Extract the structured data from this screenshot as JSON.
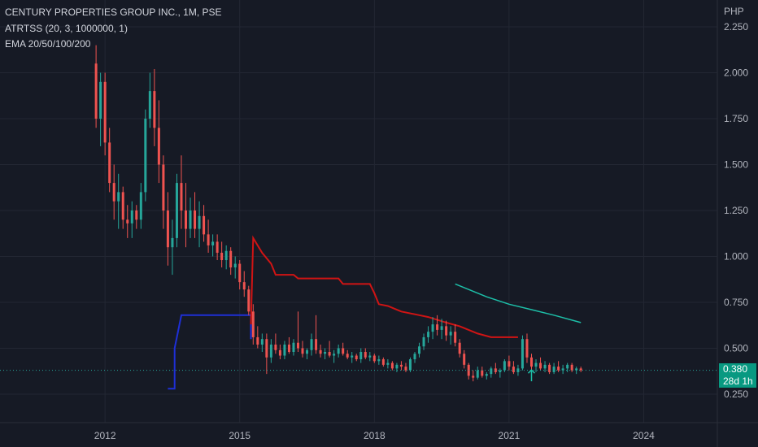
{
  "header": {
    "title": "CENTURY PROPERTIES GROUP INC., 1M, PSE",
    "indicator_atr": "ATRTSS (20, 3, 1000000, 1)",
    "indicator_ema": "EMA 20/50/100/200"
  },
  "price_badge": {
    "price": "0.380",
    "countdown": "28d 1h"
  },
  "colors": {
    "background": "#161a25",
    "up": "#26a69a",
    "down": "#ef5350",
    "stop_line": "#d01414",
    "blue_line": "#1e2fd6",
    "ema": "#1dbfa8",
    "grid": "#232733",
    "dotted_price": "#26a69a"
  },
  "chart_data": {
    "type": "candlestick",
    "ylabel": "PHP",
    "ylim": [
      0.125,
      2.375
    ],
    "yticks": [
      "2.250",
      "2.000",
      "1.750",
      "1.500",
      "1.250",
      "1.000",
      "0.750",
      "0.500",
      "0.250"
    ],
    "xticks": [
      "2012",
      "2015",
      "2018",
      "2021",
      "2024"
    ],
    "xlim": [
      2009.66,
      2025.64
    ],
    "last_price": 0.38,
    "arrow_up": {
      "x": 2021.5,
      "y": 0.32
    },
    "candles": [
      [
        2011.8,
        2.05,
        2.15,
        1.7,
        1.75
      ],
      [
        2011.9,
        1.75,
        2.0,
        1.6,
        1.95
      ],
      [
        2012.0,
        1.95,
        2.0,
        1.55,
        1.62
      ],
      [
        2012.1,
        1.62,
        1.7,
        1.35,
        1.4
      ],
      [
        2012.2,
        1.4,
        1.5,
        1.2,
        1.3
      ],
      [
        2012.3,
        1.3,
        1.45,
        1.15,
        1.35
      ],
      [
        2012.4,
        1.35,
        1.38,
        1.15,
        1.2
      ],
      [
        2012.5,
        1.2,
        1.28,
        1.1,
        1.18
      ],
      [
        2012.6,
        1.18,
        1.3,
        1.1,
        1.25
      ],
      [
        2012.7,
        1.25,
        1.28,
        1.15,
        1.2
      ],
      [
        2012.8,
        1.2,
        1.4,
        1.15,
        1.35
      ],
      [
        2012.9,
        1.35,
        1.8,
        1.3,
        1.75
      ],
      [
        2013.0,
        1.75,
        2.0,
        1.7,
        1.9
      ],
      [
        2013.1,
        1.9,
        2.02,
        1.6,
        1.7
      ],
      [
        2013.2,
        1.7,
        1.85,
        1.4,
        1.5
      ],
      [
        2013.3,
        1.5,
        1.55,
        1.15,
        1.25
      ],
      [
        2013.4,
        1.25,
        1.35,
        0.95,
        1.05
      ],
      [
        2013.5,
        1.05,
        1.2,
        0.9,
        1.1
      ],
      [
        2013.6,
        1.1,
        1.45,
        1.05,
        1.4
      ],
      [
        2013.7,
        1.4,
        1.55,
        1.15,
        1.25
      ],
      [
        2013.8,
        1.25,
        1.4,
        1.05,
        1.15
      ],
      [
        2013.9,
        1.15,
        1.32,
        1.1,
        1.25
      ],
      [
        2014.0,
        1.25,
        1.35,
        1.1,
        1.15
      ],
      [
        2014.1,
        1.15,
        1.3,
        1.05,
        1.22
      ],
      [
        2014.2,
        1.22,
        1.28,
        1.08,
        1.12
      ],
      [
        2014.3,
        1.12,
        1.2,
        1.02,
        1.06
      ],
      [
        2014.4,
        1.06,
        1.12,
        1.0,
        1.08
      ],
      [
        2014.5,
        1.08,
        1.12,
        0.98,
        1.02
      ],
      [
        2014.6,
        1.02,
        1.08,
        0.94,
        0.98
      ],
      [
        2014.7,
        0.98,
        1.06,
        0.93,
        1.03
      ],
      [
        2014.8,
        1.03,
        1.05,
        0.9,
        0.94
      ],
      [
        2014.9,
        0.94,
        1.0,
        0.88,
        0.96
      ],
      [
        2015.0,
        0.96,
        0.98,
        0.82,
        0.86
      ],
      [
        2015.1,
        0.86,
        0.92,
        0.78,
        0.82
      ],
      [
        2015.2,
        0.82,
        0.84,
        0.68,
        0.7
      ],
      [
        2015.3,
        0.7,
        0.74,
        0.52,
        0.56
      ],
      [
        2015.4,
        0.56,
        0.62,
        0.5,
        0.52
      ],
      [
        2015.5,
        0.52,
        0.58,
        0.48,
        0.55
      ],
      [
        2015.6,
        0.55,
        0.58,
        0.36,
        0.45
      ],
      [
        2015.7,
        0.45,
        0.55,
        0.42,
        0.52
      ],
      [
        2015.8,
        0.52,
        0.58,
        0.47,
        0.49
      ],
      [
        2015.9,
        0.49,
        0.52,
        0.44,
        0.46
      ],
      [
        2016.0,
        0.46,
        0.54,
        0.44,
        0.52
      ],
      [
        2016.1,
        0.52,
        0.56,
        0.47,
        0.48
      ],
      [
        2016.2,
        0.48,
        0.55,
        0.46,
        0.53
      ],
      [
        2016.3,
        0.53,
        0.7,
        0.48,
        0.5
      ],
      [
        2016.4,
        0.5,
        0.54,
        0.45,
        0.47
      ],
      [
        2016.5,
        0.47,
        0.5,
        0.44,
        0.49
      ],
      [
        2016.6,
        0.49,
        0.58,
        0.46,
        0.55
      ],
      [
        2016.7,
        0.55,
        0.68,
        0.47,
        0.49
      ],
      [
        2016.8,
        0.49,
        0.52,
        0.45,
        0.47
      ],
      [
        2016.9,
        0.47,
        0.5,
        0.44,
        0.48
      ],
      [
        2017.0,
        0.48,
        0.54,
        0.45,
        0.46
      ],
      [
        2017.1,
        0.46,
        0.49,
        0.42,
        0.47
      ],
      [
        2017.2,
        0.47,
        0.52,
        0.45,
        0.5
      ],
      [
        2017.3,
        0.5,
        0.53,
        0.46,
        0.47
      ],
      [
        2017.4,
        0.47,
        0.49,
        0.44,
        0.45
      ],
      [
        2017.5,
        0.45,
        0.48,
        0.42,
        0.46
      ],
      [
        2017.6,
        0.46,
        0.47,
        0.43,
        0.44
      ],
      [
        2017.7,
        0.44,
        0.5,
        0.42,
        0.48
      ],
      [
        2017.8,
        0.48,
        0.5,
        0.44,
        0.45
      ],
      [
        2017.9,
        0.45,
        0.48,
        0.43,
        0.46
      ],
      [
        2018.0,
        0.46,
        0.47,
        0.42,
        0.43
      ],
      [
        2018.1,
        0.43,
        0.46,
        0.41,
        0.44
      ],
      [
        2018.2,
        0.44,
        0.45,
        0.4,
        0.41
      ],
      [
        2018.3,
        0.41,
        0.44,
        0.39,
        0.42
      ],
      [
        2018.4,
        0.42,
        0.43,
        0.38,
        0.39
      ],
      [
        2018.5,
        0.39,
        0.42,
        0.37,
        0.41
      ],
      [
        2018.6,
        0.41,
        0.43,
        0.38,
        0.4
      ],
      [
        2018.7,
        0.4,
        0.42,
        0.37,
        0.38
      ],
      [
        2018.8,
        0.38,
        0.45,
        0.37,
        0.44
      ],
      [
        2018.9,
        0.44,
        0.48,
        0.42,
        0.47
      ],
      [
        2019.0,
        0.47,
        0.53,
        0.45,
        0.51
      ],
      [
        2019.1,
        0.51,
        0.58,
        0.49,
        0.56
      ],
      [
        2019.2,
        0.56,
        0.62,
        0.53,
        0.59
      ],
      [
        2019.3,
        0.59,
        0.67,
        0.55,
        0.63
      ],
      [
        2019.4,
        0.63,
        0.68,
        0.57,
        0.6
      ],
      [
        2019.5,
        0.6,
        0.66,
        0.55,
        0.62
      ],
      [
        2019.6,
        0.62,
        0.65,
        0.54,
        0.57
      ],
      [
        2019.7,
        0.57,
        0.62,
        0.52,
        0.59
      ],
      [
        2019.8,
        0.59,
        0.63,
        0.51,
        0.53
      ],
      [
        2019.9,
        0.53,
        0.55,
        0.45,
        0.47
      ],
      [
        2020.0,
        0.47,
        0.49,
        0.39,
        0.41
      ],
      [
        2020.1,
        0.41,
        0.42,
        0.33,
        0.35
      ],
      [
        2020.2,
        0.35,
        0.38,
        0.32,
        0.34
      ],
      [
        2020.3,
        0.34,
        0.4,
        0.33,
        0.38
      ],
      [
        2020.4,
        0.38,
        0.4,
        0.34,
        0.35
      ],
      [
        2020.5,
        0.35,
        0.37,
        0.33,
        0.36
      ],
      [
        2020.6,
        0.36,
        0.4,
        0.34,
        0.39
      ],
      [
        2020.7,
        0.39,
        0.42,
        0.36,
        0.37
      ],
      [
        2020.8,
        0.37,
        0.39,
        0.34,
        0.38
      ],
      [
        2020.9,
        0.38,
        0.44,
        0.37,
        0.43
      ],
      [
        2021.0,
        0.43,
        0.46,
        0.38,
        0.4
      ],
      [
        2021.1,
        0.4,
        0.43,
        0.36,
        0.37
      ],
      [
        2021.2,
        0.37,
        0.41,
        0.35,
        0.39
      ],
      [
        2021.3,
        0.39,
        0.57,
        0.38,
        0.55
      ],
      [
        2021.4,
        0.55,
        0.58,
        0.42,
        0.45
      ],
      [
        2021.5,
        0.45,
        0.47,
        0.38,
        0.4
      ],
      [
        2021.6,
        0.4,
        0.44,
        0.37,
        0.42
      ],
      [
        2021.7,
        0.42,
        0.45,
        0.38,
        0.39
      ],
      [
        2021.8,
        0.39,
        0.43,
        0.37,
        0.41
      ],
      [
        2021.9,
        0.41,
        0.42,
        0.36,
        0.37
      ],
      [
        2022.0,
        0.37,
        0.42,
        0.36,
        0.4
      ],
      [
        2022.1,
        0.4,
        0.43,
        0.37,
        0.38
      ],
      [
        2022.2,
        0.38,
        0.41,
        0.36,
        0.39
      ],
      [
        2022.3,
        0.39,
        0.42,
        0.37,
        0.41
      ],
      [
        2022.4,
        0.41,
        0.42,
        0.37,
        0.38
      ],
      [
        2022.5,
        0.38,
        0.4,
        0.36,
        0.39
      ],
      [
        2022.6,
        0.39,
        0.4,
        0.37,
        0.38
      ]
    ],
    "stop_line": [
      [
        2015.25,
        0.63
      ],
      [
        2015.3,
        1.1
      ],
      [
        2015.5,
        1.02
      ],
      [
        2015.7,
        0.96
      ],
      [
        2015.8,
        0.9
      ],
      [
        2016.2,
        0.9
      ],
      [
        2016.3,
        0.88
      ],
      [
        2017.2,
        0.88
      ],
      [
        2017.3,
        0.85
      ],
      [
        2017.9,
        0.85
      ],
      [
        2018.0,
        0.8
      ],
      [
        2018.1,
        0.74
      ],
      [
        2018.3,
        0.73
      ],
      [
        2018.6,
        0.7
      ],
      [
        2019.0,
        0.68
      ],
      [
        2019.2,
        0.67
      ],
      [
        2019.6,
        0.64
      ],
      [
        2019.9,
        0.62
      ],
      [
        2020.3,
        0.58
      ],
      [
        2020.6,
        0.56
      ],
      [
        2020.9,
        0.56
      ],
      [
        2021.2,
        0.56
      ]
    ],
    "blue_line": [
      [
        2013.4,
        0.28
      ],
      [
        2013.55,
        0.28
      ],
      [
        2013.55,
        0.5
      ],
      [
        2013.7,
        0.68
      ],
      [
        2015.25,
        0.68
      ],
      [
        2015.25,
        0.55
      ]
    ],
    "ema_line": [
      [
        2019.8,
        0.85
      ],
      [
        2020.5,
        0.78
      ],
      [
        2021.0,
        0.74
      ],
      [
        2021.5,
        0.71
      ],
      [
        2022.0,
        0.68
      ],
      [
        2022.6,
        0.64
      ]
    ]
  }
}
